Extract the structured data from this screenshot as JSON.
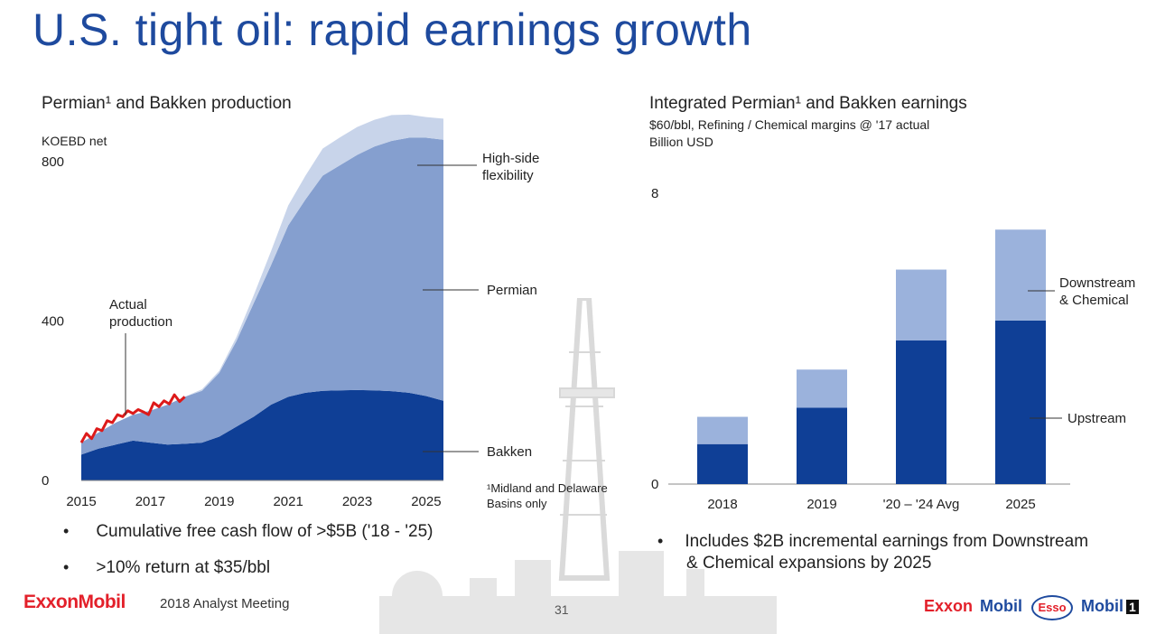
{
  "page": {
    "title": "U.S. tight oil: rapid earnings growth",
    "left_bullets": [
      "Cumulative free cash flow of >$5B ('18 - '25)",
      ">10% return at $35/bbl"
    ],
    "right_bullets": [
      "Includes $2B incremental earnings from Downstream",
      "& Chemical expansions by 2025"
    ],
    "footnote": [
      "¹Midland and Delaware",
      "Basins only"
    ],
    "footer": {
      "brand": "ExxonMobil",
      "event": "2018 Analyst Meeting",
      "page_number": "31"
    },
    "logos": [
      "Exxon",
      "Mobil",
      "Esso",
      "Mobil",
      "1"
    ],
    "colors": {
      "title": "#1e4a9e",
      "bakken": "#0f3f96",
      "permian": "#859fcf",
      "high_side": "#c8d4ea",
      "actual": "#dd1a1a",
      "upstream": "#0f3f96",
      "downstream": "#9bb2dc",
      "brand_red": "#e3202a"
    }
  },
  "chart_data": [
    {
      "type": "area",
      "title": "Permian¹ and Bakken production",
      "ylabel": "KOEBD net",
      "ylim": [
        0,
        800
      ],
      "yticks": [
        "0",
        "400",
        "800"
      ],
      "xlim": [
        2015,
        2025.5
      ],
      "xticks": [
        "2015",
        "2017",
        "2019",
        "2021",
        "2023",
        "2025"
      ],
      "x": [
        2015,
        2015.5,
        2016,
        2016.5,
        2017,
        2017.5,
        2018,
        2018.5,
        2019,
        2019.5,
        2020,
        2020.5,
        2021,
        2021.5,
        2022,
        2022.5,
        2023,
        2023.5,
        2024,
        2024.5,
        2025,
        2025.5
      ],
      "series": [
        {
          "name": "Bakken",
          "values": [
            65,
            80,
            90,
            100,
            95,
            90,
            92,
            95,
            110,
            135,
            160,
            190,
            210,
            220,
            225,
            226,
            227,
            226,
            224,
            220,
            212,
            200
          ]
        },
        {
          "name": "Permian",
          "values": [
            30,
            40,
            55,
            65,
            80,
            100,
            118,
            130,
            160,
            215,
            285,
            350,
            430,
            485,
            540,
            565,
            590,
            612,
            628,
            640,
            648,
            655
          ]
        },
        {
          "name": "High-side flexibility",
          "values": [
            0,
            0,
            0,
            0,
            0,
            0,
            0,
            4,
            5,
            10,
            20,
            35,
            50,
            60,
            68,
            70,
            70,
            67,
            65,
            58,
            52,
            53
          ]
        }
      ],
      "actual_production": {
        "name": "Actual production",
        "x": [
          2015,
          2015.15,
          2015.3,
          2015.45,
          2015.6,
          2015.75,
          2015.9,
          2016.05,
          2016.2,
          2016.35,
          2016.5,
          2016.65,
          2016.8,
          2016.95,
          2017.1,
          2017.25,
          2017.4,
          2017.55,
          2017.7,
          2017.85,
          2018
        ],
        "values": [
          95,
          118,
          105,
          130,
          125,
          150,
          145,
          165,
          160,
          175,
          168,
          178,
          172,
          165,
          195,
          185,
          200,
          192,
          215,
          198,
          210
        ]
      },
      "annotations": [
        "Actual",
        "production",
        "High-side",
        "flexibility",
        "Permian",
        "Bakken"
      ]
    },
    {
      "type": "bar",
      "title": "Integrated Permian¹ and Bakken earnings",
      "subtitle": "$60/bbl, Refining / Chemical margins @ '17 actual",
      "ylabel": "Billion USD",
      "ylim": [
        0,
        8
      ],
      "yticks": [
        "0",
        "8"
      ],
      "categories": [
        "2018",
        "2019",
        "'20 – '24 Avg",
        "2025"
      ],
      "series": [
        {
          "name": "Upstream",
          "values": [
            1.1,
            2.1,
            3.95,
            4.5
          ]
        },
        {
          "name": "Downstream & Chemical",
          "values": [
            0.75,
            1.05,
            1.95,
            2.5
          ]
        }
      ],
      "annotations": [
        "Downstream",
        "& Chemical",
        "Upstream"
      ]
    }
  ]
}
